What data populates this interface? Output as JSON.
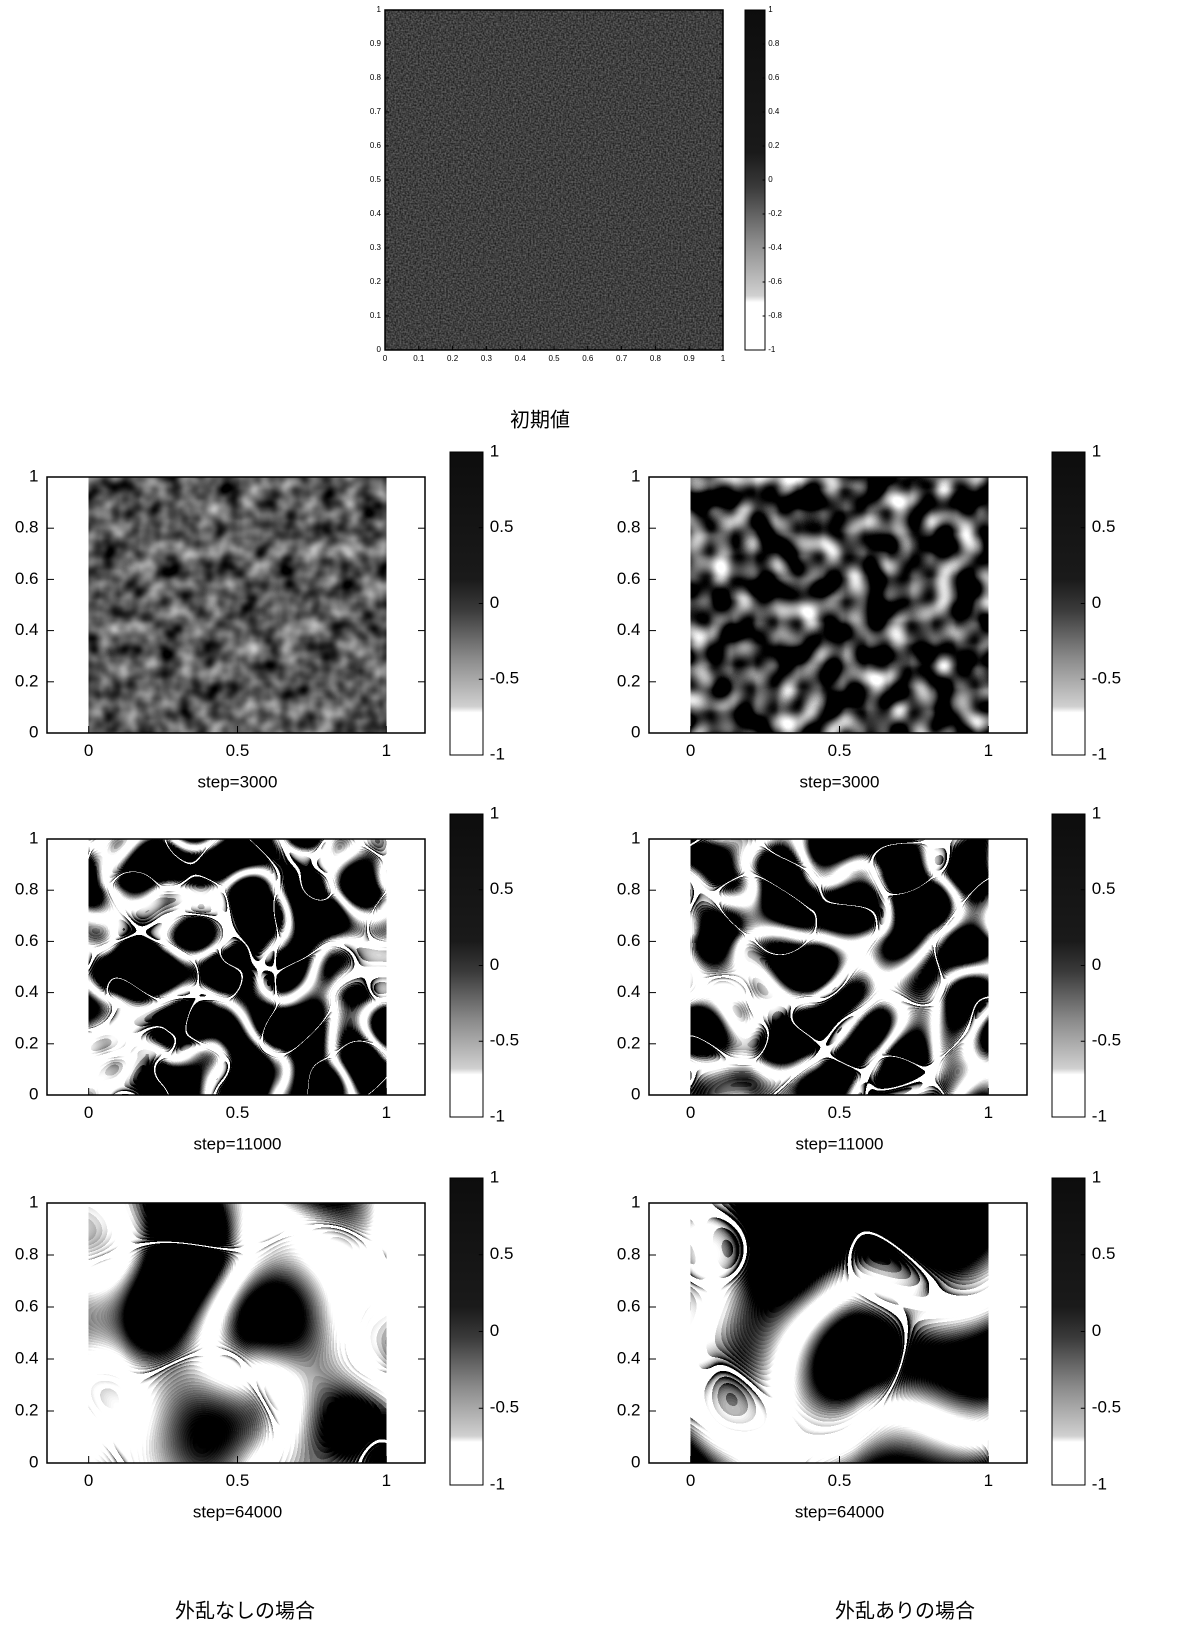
{
  "chart_data": [
    {
      "type": "heatmap",
      "xlim": [
        0,
        1
      ],
      "ylim": [
        0,
        1
      ],
      "xticks": [
        0,
        0.1,
        0.2,
        0.3,
        0.4,
        0.5,
        0.6,
        0.7,
        0.8,
        0.9,
        1
      ],
      "yticks": [
        0,
        0.1,
        0.2,
        0.3,
        0.4,
        0.5,
        0.6,
        0.7,
        0.8,
        0.9,
        1
      ],
      "colorbar": {
        "lim": [
          -1,
          1
        ],
        "ticks": [
          1,
          0.8,
          0.6,
          0.4,
          0.2,
          0,
          -0.2,
          -0.4,
          -0.6,
          -0.8,
          -1
        ]
      }
    },
    {
      "type": "heatmap",
      "xlabel": "step=3000",
      "xlim": [
        -0.14,
        1.13
      ],
      "ylim": [
        0,
        1
      ],
      "xticks": [
        0,
        0.5,
        1
      ],
      "yticks": [
        0,
        0.2,
        0.4,
        0.6,
        0.8,
        1
      ],
      "colorbar": {
        "lim": [
          -1,
          1
        ],
        "ticks": [
          1,
          0.5,
          0,
          -0.5,
          -1
        ]
      }
    },
    {
      "type": "heatmap",
      "xlabel": "step=3000",
      "xlim": [
        -0.14,
        1.13
      ],
      "ylim": [
        0,
        1
      ],
      "xticks": [
        0,
        0.5,
        1
      ],
      "yticks": [
        0,
        0.2,
        0.4,
        0.6,
        0.8,
        1
      ],
      "colorbar": {
        "lim": [
          -1,
          1
        ],
        "ticks": [
          1,
          0.5,
          0,
          -0.5,
          -1
        ]
      }
    },
    {
      "type": "heatmap",
      "xlabel": "step=11000",
      "xlim": [
        -0.14,
        1.13
      ],
      "ylim": [
        0,
        1
      ],
      "xticks": [
        0,
        0.5,
        1
      ],
      "yticks": [
        0,
        0.2,
        0.4,
        0.6,
        0.8,
        1
      ],
      "colorbar": {
        "lim": [
          -1,
          1
        ],
        "ticks": [
          1,
          0.5,
          0,
          -0.5,
          -1
        ]
      }
    },
    {
      "type": "heatmap",
      "xlabel": "step=11000",
      "xlim": [
        -0.14,
        1.13
      ],
      "ylim": [
        0,
        1
      ],
      "xticks": [
        0,
        0.5,
        1
      ],
      "yticks": [
        0,
        0.2,
        0.4,
        0.6,
        0.8,
        1
      ],
      "colorbar": {
        "lim": [
          -1,
          1
        ],
        "ticks": [
          1,
          0.5,
          0,
          -0.5,
          -1
        ]
      }
    },
    {
      "type": "heatmap",
      "xlabel": "step=64000",
      "xlim": [
        -0.14,
        1.13
      ],
      "ylim": [
        0,
        1
      ],
      "xticks": [
        0,
        0.5,
        1
      ],
      "yticks": [
        0,
        0.2,
        0.4,
        0.6,
        0.8,
        1
      ],
      "colorbar": {
        "lim": [
          -1,
          1
        ],
        "ticks": [
          1,
          0.5,
          0,
          -0.5,
          -1
        ]
      }
    },
    {
      "type": "heatmap",
      "xlabel": "step=64000",
      "xlim": [
        -0.14,
        1.13
      ],
      "ylim": [
        0,
        1
      ],
      "xticks": [
        0,
        0.5,
        1
      ],
      "yticks": [
        0,
        0.2,
        0.4,
        0.6,
        0.8,
        1
      ],
      "colorbar": {
        "lim": [
          -1,
          1
        ],
        "ticks": [
          1,
          0.5,
          0,
          -0.5,
          -1
        ]
      }
    }
  ],
  "captions": [
    "初期値",
    "外乱なしの場合",
    "外乱ありの場合"
  ]
}
